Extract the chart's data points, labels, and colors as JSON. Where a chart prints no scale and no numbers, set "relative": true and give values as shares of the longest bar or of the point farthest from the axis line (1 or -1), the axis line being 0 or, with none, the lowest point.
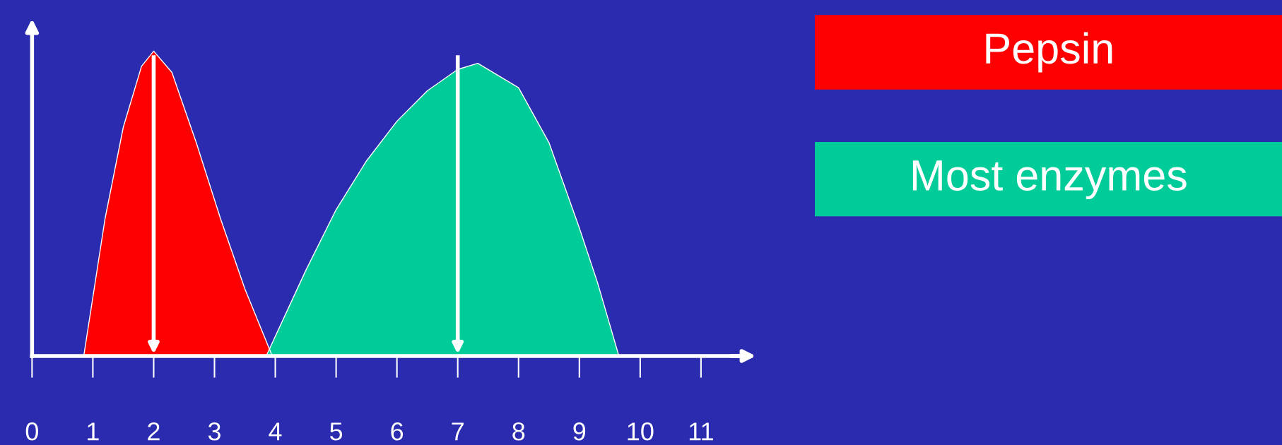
{
  "chart_data": {
    "type": "area",
    "relative": true,
    "legend": "top right",
    "grid": false,
    "xlim": [
      0,
      11.7
    ],
    "xticks": [
      0,
      1,
      2,
      3,
      4,
      5,
      6,
      7,
      8,
      9,
      10,
      11
    ],
    "series": [
      {
        "name": "Pepsin",
        "color": "#ff0000",
        "x": [
          0.85,
          1.2,
          1.5,
          1.8,
          2.0,
          2.3,
          2.7,
          3.1,
          3.5,
          3.95
        ],
        "values": [
          0,
          0.45,
          0.75,
          0.95,
          1.0,
          0.93,
          0.7,
          0.45,
          0.22,
          0
        ]
      },
      {
        "name": "Most enzymes",
        "color": "#00cc99",
        "x": [
          3.85,
          4.5,
          5.0,
          5.5,
          6.0,
          6.5,
          7.0,
          7.33,
          8.0,
          8.5,
          9.0,
          9.3,
          9.65
        ],
        "values": [
          0,
          0.28,
          0.48,
          0.64,
          0.77,
          0.87,
          0.94,
          0.96,
          0.88,
          0.7,
          0.42,
          0.24,
          0
        ]
      }
    ],
    "ref_lines": [
      {
        "axis": "x",
        "value": 2,
        "color": "#ffffff"
      },
      {
        "axis": "x",
        "value": 7,
        "color": "#ffffff"
      }
    ]
  }
}
